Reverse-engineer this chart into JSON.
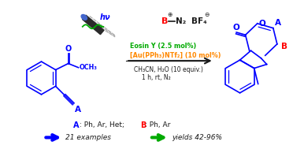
{
  "bg_color": "#ffffff",
  "blue": "#0000ff",
  "red": "#ff0000",
  "green": "#00aa00",
  "orange": "#ff8800",
  "dark": "#1a1a1a",
  "hv": "hν",
  "reagent1": "Eosin Y (2.5 mol%)",
  "reagent2": "[Au(PPh₃)NTf₂] (10 mol%)",
  "reagent3": "CH₃CN, H₂O (10 equiv.)",
  "reagent4": "1 h, rt, N₂",
  "arrow_text1": "21 examples",
  "arrow_text2": "yields 42-96%",
  "figw": 3.72,
  "figh": 1.89,
  "dpi": 100
}
